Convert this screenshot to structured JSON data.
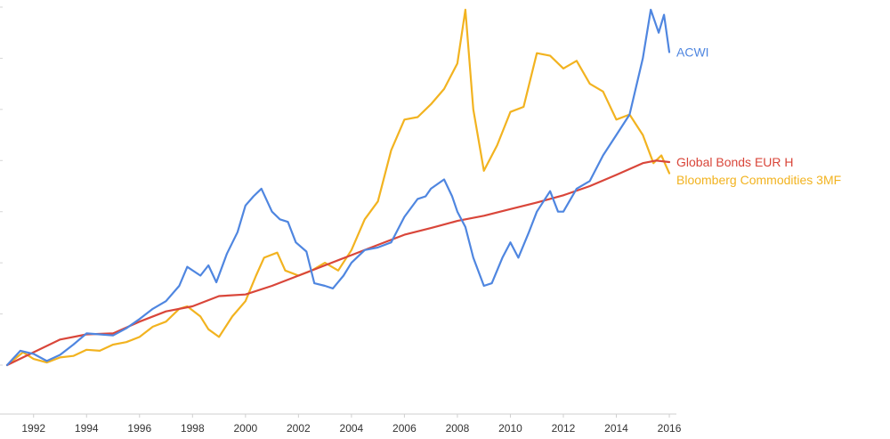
{
  "chart_data": {
    "type": "line",
    "title": "",
    "xlabel": "",
    "ylabel": "",
    "x_ticks": [
      "1992",
      "1994",
      "1996",
      "1998",
      "2000",
      "2002",
      "2004",
      "2006",
      "2008",
      "2010",
      "2012",
      "2014",
      "2016"
    ],
    "xlim": [
      1990.9,
      2016.1
    ],
    "ylim": [
      0,
      7
    ],
    "grid": false,
    "legend": "inline labels at right end of each line",
    "series": [
      {
        "name": "ACWI",
        "color": "#4f86e0",
        "points": [
          [
            1991.0,
            0.0
          ],
          [
            1991.5,
            0.28
          ],
          [
            1992.0,
            0.22
          ],
          [
            1992.5,
            0.08
          ],
          [
            1993.0,
            0.2
          ],
          [
            1993.5,
            0.4
          ],
          [
            1994.0,
            0.62
          ],
          [
            1994.5,
            0.6
          ],
          [
            1995.0,
            0.58
          ],
          [
            1995.5,
            0.72
          ],
          [
            1996.0,
            0.9
          ],
          [
            1996.5,
            1.1
          ],
          [
            1997.0,
            1.25
          ],
          [
            1997.5,
            1.55
          ],
          [
            1997.8,
            1.92
          ],
          [
            1998.3,
            1.75
          ],
          [
            1998.6,
            1.95
          ],
          [
            1998.9,
            1.62
          ],
          [
            1999.3,
            2.18
          ],
          [
            1999.7,
            2.6
          ],
          [
            2000.0,
            3.12
          ],
          [
            2000.3,
            3.3
          ],
          [
            2000.6,
            3.45
          ],
          [
            2001.0,
            3.0
          ],
          [
            2001.3,
            2.85
          ],
          [
            2001.6,
            2.8
          ],
          [
            2001.9,
            2.4
          ],
          [
            2002.3,
            2.22
          ],
          [
            2002.6,
            1.6
          ],
          [
            2003.0,
            1.55
          ],
          [
            2003.3,
            1.5
          ],
          [
            2003.7,
            1.75
          ],
          [
            2004.0,
            2.0
          ],
          [
            2004.5,
            2.25
          ],
          [
            2005.0,
            2.3
          ],
          [
            2005.5,
            2.4
          ],
          [
            2006.0,
            2.9
          ],
          [
            2006.5,
            3.25
          ],
          [
            2006.8,
            3.3
          ],
          [
            2007.0,
            3.45
          ],
          [
            2007.5,
            3.63
          ],
          [
            2007.8,
            3.3
          ],
          [
            2008.0,
            3.0
          ],
          [
            2008.3,
            2.7
          ],
          [
            2008.6,
            2.1
          ],
          [
            2009.0,
            1.55
          ],
          [
            2009.3,
            1.6
          ],
          [
            2009.7,
            2.1
          ],
          [
            2010.0,
            2.4
          ],
          [
            2010.3,
            2.1
          ],
          [
            2010.7,
            2.6
          ],
          [
            2011.0,
            3.0
          ],
          [
            2011.5,
            3.4
          ],
          [
            2011.8,
            3.0
          ],
          [
            2012.0,
            3.0
          ],
          [
            2012.5,
            3.45
          ],
          [
            2013.0,
            3.6
          ],
          [
            2013.5,
            4.1
          ],
          [
            2014.0,
            4.5
          ],
          [
            2014.5,
            4.9
          ],
          [
            2015.0,
            6.0
          ],
          [
            2015.3,
            6.95
          ],
          [
            2015.6,
            6.5
          ],
          [
            2015.8,
            6.85
          ],
          [
            2016.0,
            6.12
          ]
        ]
      },
      {
        "name": "Global Bonds EUR H",
        "color": "#d9463a",
        "points": [
          [
            1991.0,
            0.0
          ],
          [
            1992.0,
            0.25
          ],
          [
            1993.0,
            0.5
          ],
          [
            1994.0,
            0.6
          ],
          [
            1995.0,
            0.62
          ],
          [
            1996.0,
            0.85
          ],
          [
            1997.0,
            1.05
          ],
          [
            1998.0,
            1.15
          ],
          [
            1999.0,
            1.35
          ],
          [
            2000.0,
            1.38
          ],
          [
            2001.0,
            1.55
          ],
          [
            2002.0,
            1.75
          ],
          [
            2003.0,
            1.95
          ],
          [
            2004.0,
            2.15
          ],
          [
            2005.0,
            2.35
          ],
          [
            2006.0,
            2.55
          ],
          [
            2007.0,
            2.68
          ],
          [
            2008.0,
            2.82
          ],
          [
            2009.0,
            2.92
          ],
          [
            2010.0,
            3.05
          ],
          [
            2011.0,
            3.18
          ],
          [
            2012.0,
            3.32
          ],
          [
            2013.0,
            3.5
          ],
          [
            2014.0,
            3.72
          ],
          [
            2015.0,
            3.95
          ],
          [
            2015.5,
            4.0
          ],
          [
            2016.0,
            3.97
          ]
        ]
      },
      {
        "name": "Bloomberg Commodities 3MF",
        "color": "#f2b320",
        "points": [
          [
            1991.0,
            0.0
          ],
          [
            1991.6,
            0.25
          ],
          [
            1992.0,
            0.12
          ],
          [
            1992.5,
            0.05
          ],
          [
            1993.0,
            0.15
          ],
          [
            1993.5,
            0.18
          ],
          [
            1994.0,
            0.3
          ],
          [
            1994.5,
            0.28
          ],
          [
            1995.0,
            0.4
          ],
          [
            1995.5,
            0.45
          ],
          [
            1996.0,
            0.55
          ],
          [
            1996.5,
            0.75
          ],
          [
            1997.0,
            0.85
          ],
          [
            1997.5,
            1.1
          ],
          [
            1997.8,
            1.15
          ],
          [
            1998.3,
            0.95
          ],
          [
            1998.6,
            0.7
          ],
          [
            1999.0,
            0.55
          ],
          [
            1999.5,
            0.95
          ],
          [
            2000.0,
            1.25
          ],
          [
            2000.4,
            1.75
          ],
          [
            2000.7,
            2.1
          ],
          [
            2001.2,
            2.2
          ],
          [
            2001.5,
            1.85
          ],
          [
            2002.0,
            1.75
          ],
          [
            2002.5,
            1.85
          ],
          [
            2003.0,
            2.0
          ],
          [
            2003.5,
            1.85
          ],
          [
            2004.0,
            2.25
          ],
          [
            2004.5,
            2.85
          ],
          [
            2005.0,
            3.2
          ],
          [
            2005.5,
            4.2
          ],
          [
            2006.0,
            4.8
          ],
          [
            2006.5,
            4.85
          ],
          [
            2007.0,
            5.1
          ],
          [
            2007.5,
            5.4
          ],
          [
            2008.0,
            5.9
          ],
          [
            2008.3,
            6.95
          ],
          [
            2008.6,
            5.0
          ],
          [
            2009.0,
            3.8
          ],
          [
            2009.5,
            4.3
          ],
          [
            2010.0,
            4.95
          ],
          [
            2010.5,
            5.05
          ],
          [
            2011.0,
            6.1
          ],
          [
            2011.5,
            6.05
          ],
          [
            2012.0,
            5.8
          ],
          [
            2012.5,
            5.95
          ],
          [
            2013.0,
            5.5
          ],
          [
            2013.5,
            5.35
          ],
          [
            2014.0,
            4.8
          ],
          [
            2014.5,
            4.9
          ],
          [
            2015.0,
            4.5
          ],
          [
            2015.4,
            3.95
          ],
          [
            2015.7,
            4.1
          ],
          [
            2016.0,
            3.75
          ]
        ]
      }
    ]
  }
}
